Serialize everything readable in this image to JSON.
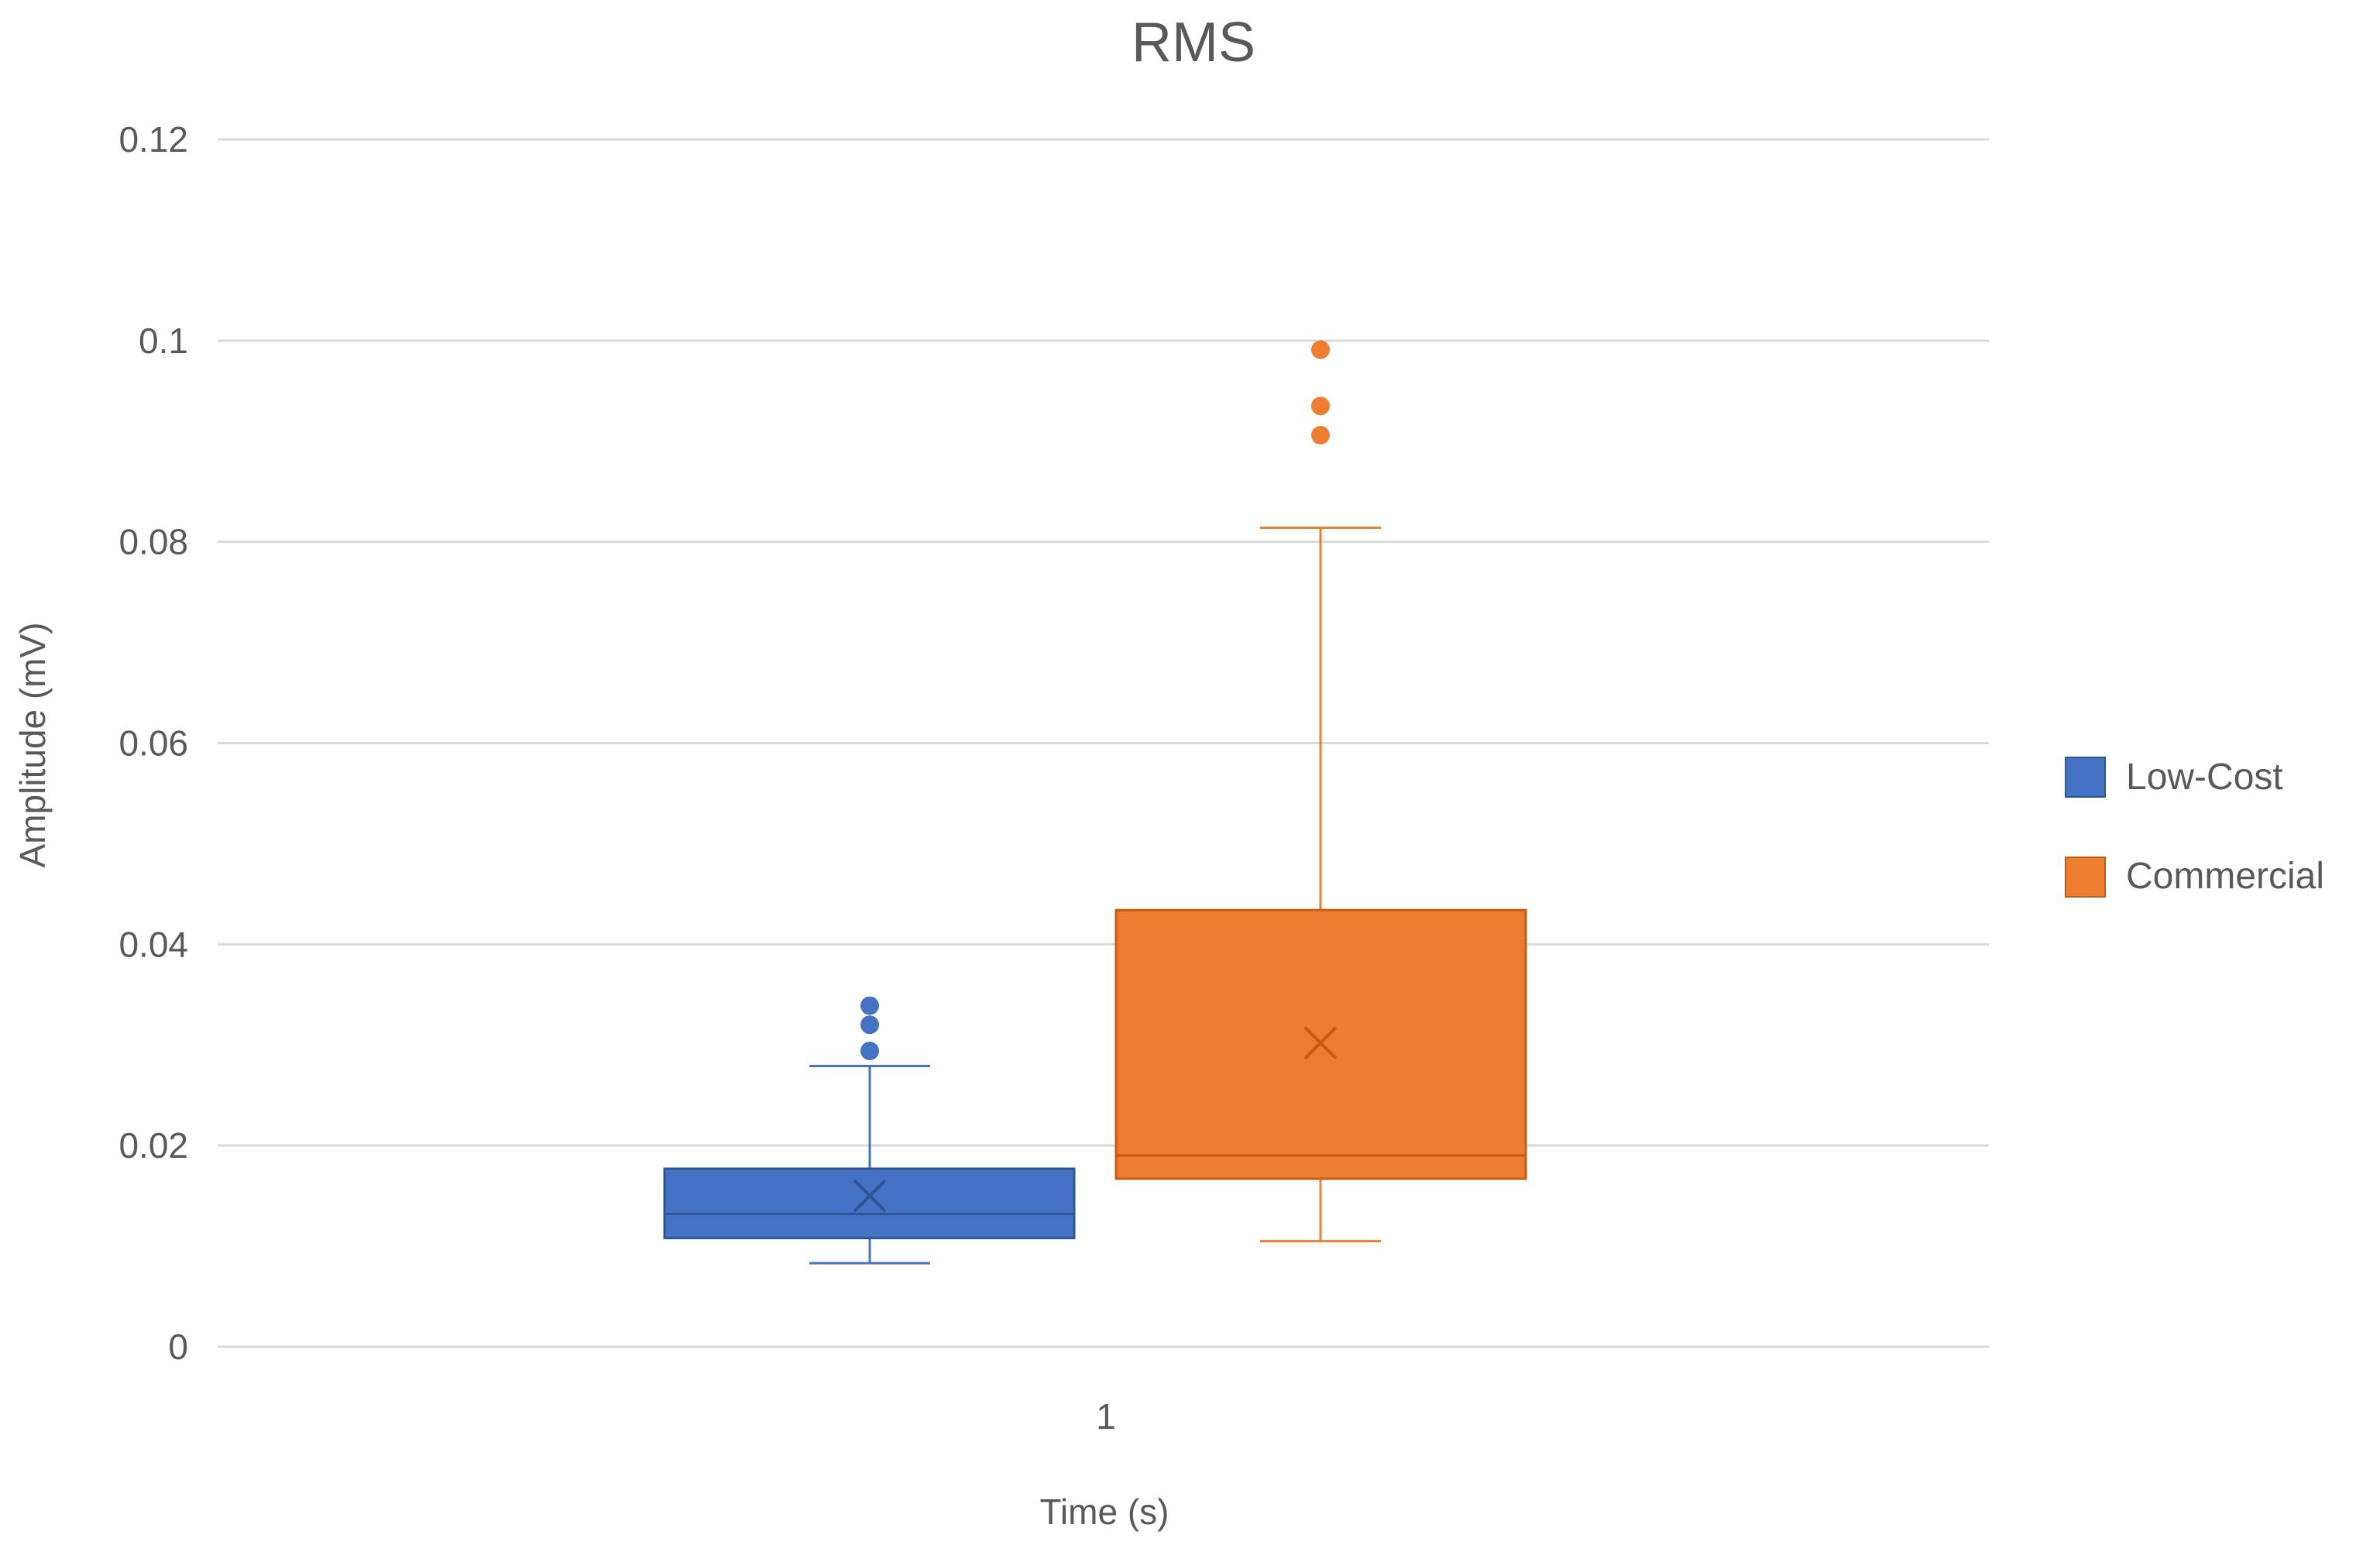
{
  "chart_data": {
    "type": "box",
    "title": "RMS",
    "xlabel": "Time (s)",
    "ylabel": "Amplitude (mV)",
    "categories": [
      "1"
    ],
    "ylim": [
      0,
      0.12
    ],
    "yticks": [
      0,
      0.02,
      0.04,
      0.06,
      0.08,
      0.1,
      0.12
    ],
    "ytick_labels": [
      "0",
      "0.02",
      "0.04",
      "0.06",
      "0.08",
      "0.1",
      "0.12"
    ],
    "grid": true,
    "legend_position": "right",
    "series": [
      {
        "name": "Low-Cost",
        "color": "#4472C4",
        "min": 0.0083,
        "q1": 0.0108,
        "median": 0.0132,
        "q3": 0.0177,
        "max": 0.0279,
        "mean": 0.015,
        "outliers": [
          0.0294,
          0.032,
          0.0339
        ]
      },
      {
        "name": "Commercial",
        "color": "#ED7D31",
        "min": 0.0105,
        "q1": 0.0167,
        "median": 0.019,
        "q3": 0.0434,
        "max": 0.0814,
        "mean": 0.0302,
        "outliers": [
          0.0906,
          0.0935,
          0.0991
        ]
      }
    ]
  }
}
